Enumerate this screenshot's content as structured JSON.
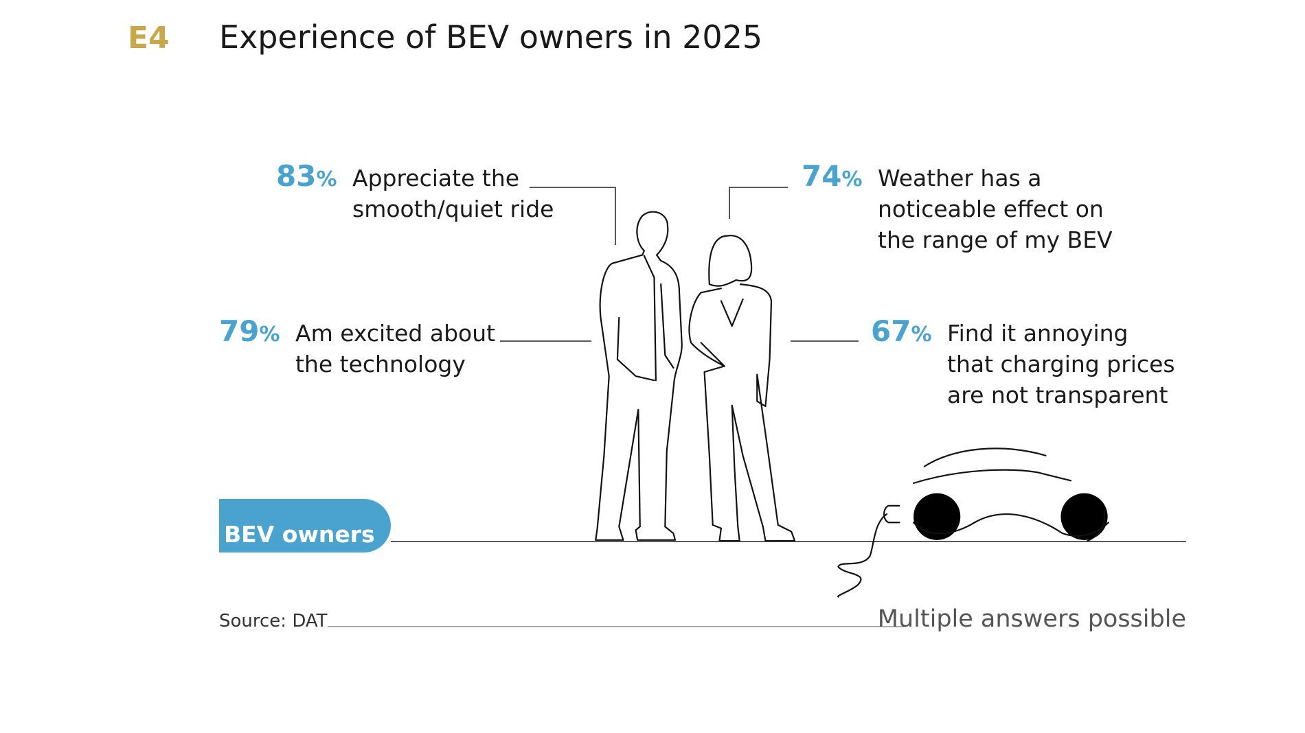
{
  "header": {
    "code": "E4",
    "title": "Experience of BEV owners in 2025"
  },
  "items": [
    {
      "value": "83",
      "unit": "%",
      "lines": [
        "Appreciate the",
        "smooth/quiet ride"
      ]
    },
    {
      "value": "74",
      "unit": "%",
      "lines": [
        "Weather has a",
        "noticeable effect on",
        "the range of my BEV"
      ]
    },
    {
      "value": "79",
      "unit": "%",
      "lines": [
        "Am excited about",
        "the technology"
      ]
    },
    {
      "value": "67",
      "unit": "%",
      "lines": [
        "Find it annoying",
        "that charging prices",
        "are not transparent"
      ]
    }
  ],
  "badge": "BEV owners",
  "footer": {
    "source": "Source: DAT",
    "note": "Multiple answers possible"
  }
}
